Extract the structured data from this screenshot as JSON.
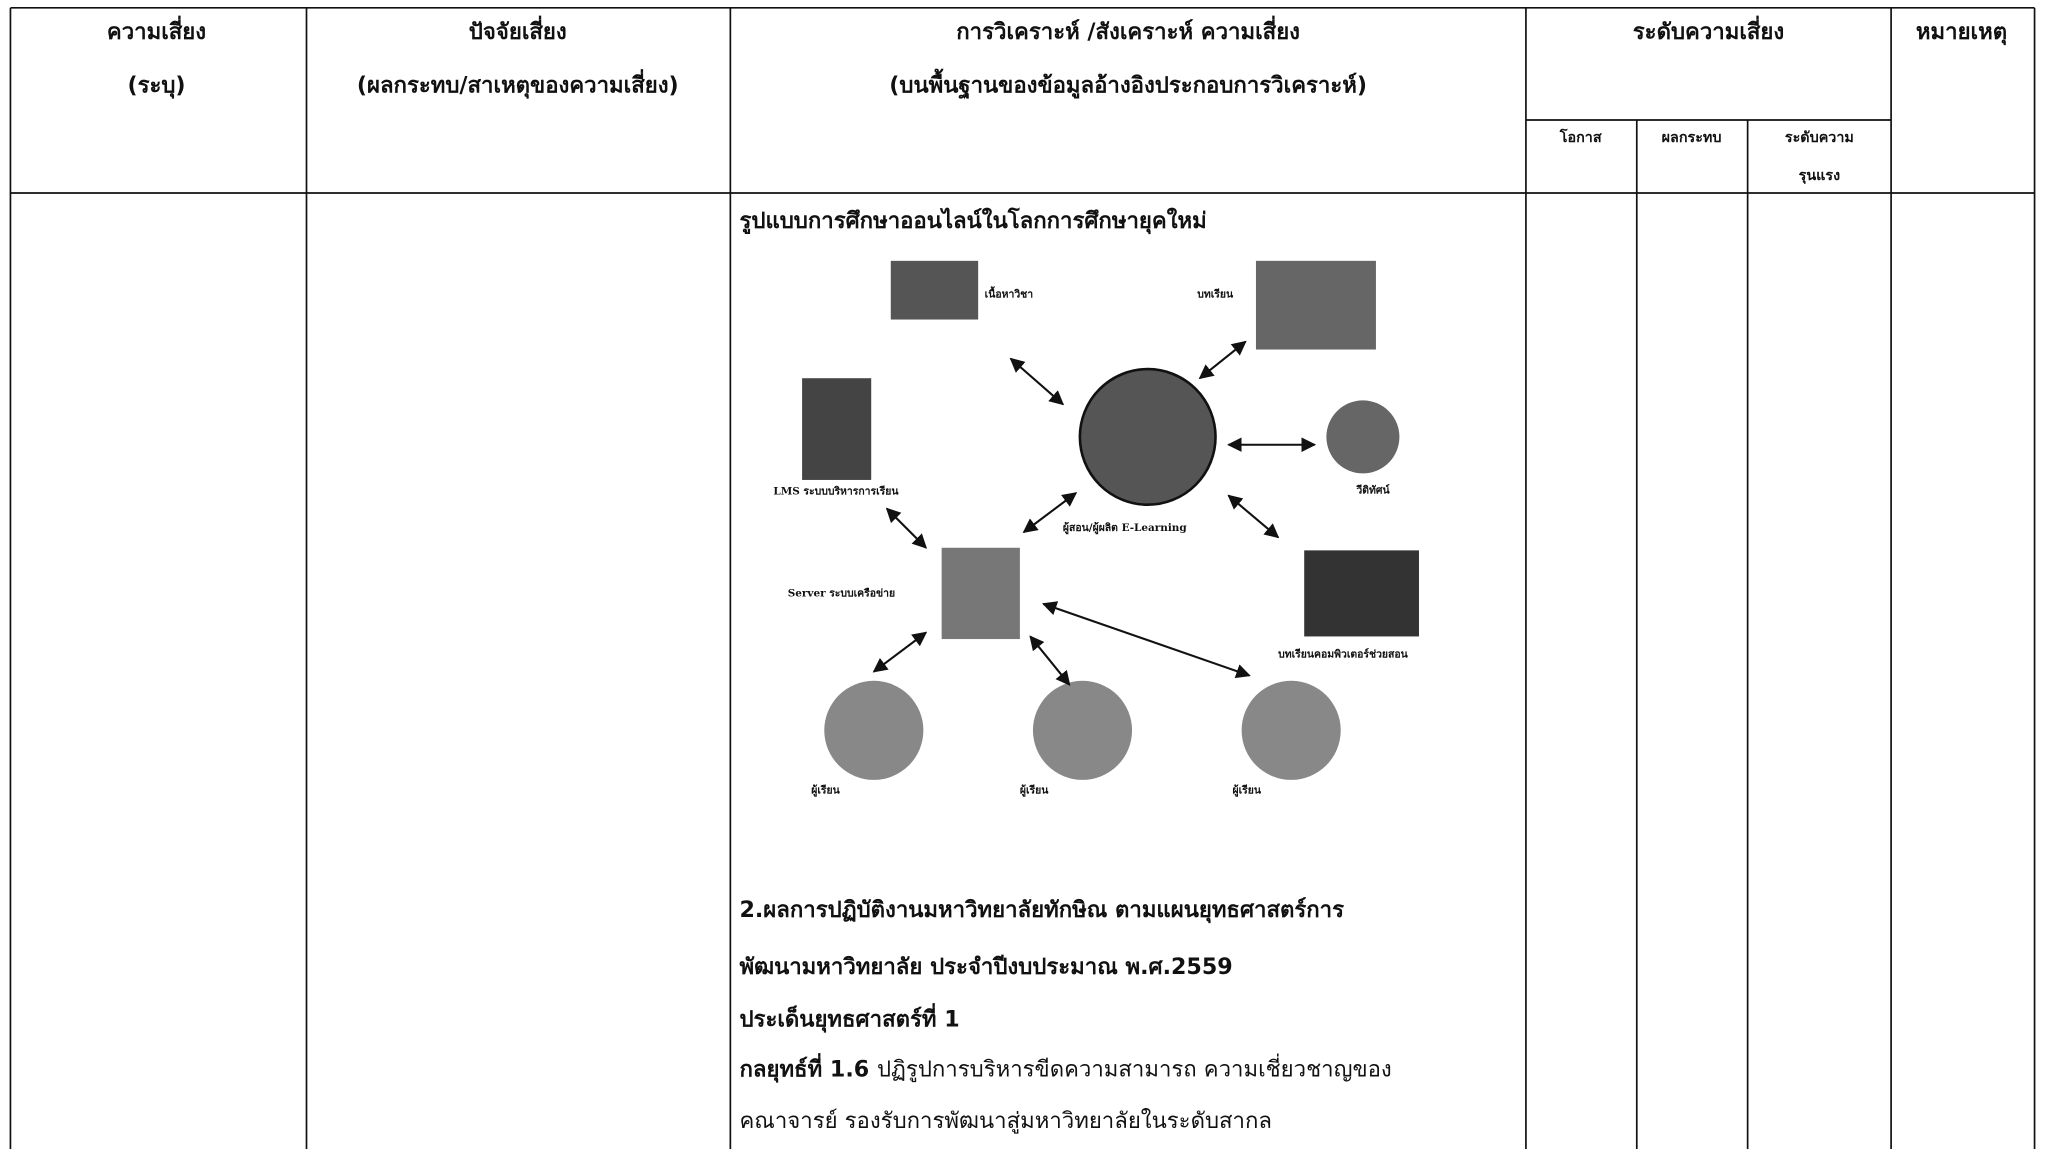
{
  "header": {
    "risk": [
      "ความเสี่ยง",
      "(ระบุ)"
    ],
    "factor": [
      "ปัจจัยเสี่ยง",
      "(ผลกระทบ/สาเหตุของความเสี่ยง)"
    ],
    "analysis": [
      "การวิเคราะห์ /สังเคราะห์ ความเสี่ยง",
      "(บนพื้นฐานของข้อมูลอ้างอิงประกอบการวิเคราะห์)"
    ],
    "level": "ระดับความเสี่ยง",
    "level_sub": {
      "chance": "โอกาส",
      "impact": "ผลกระทบ",
      "severity": [
        "ระดับความ",
        "รุนแรง"
      ]
    },
    "remark": "หมายเหตุ"
  },
  "diagram": {
    "title": "รูปแบบการศึกษาออนไลน์ในโลกการศึกษายุคใหม่",
    "nodes": {
      "content": "เนื้อหาวิชา",
      "lesson": "บทเรียน",
      "lms": "LMS ระบบบริหารการเรียน",
      "center": "ผู้สอน/ผู้ผลิต E-Learning",
      "video": "วีดิทัศน์",
      "server": "Server ระบบเครือข่าย",
      "cai": "บทเรียนคอมพิวเตอร์ช่วยสอน",
      "learners": [
        "ผู้เรียน",
        "ผู้เรียน",
        "ผู้เรียน"
      ]
    }
  },
  "body": {
    "lines": [
      "2.ผลการปฏิบัติงานมหาวิทยาลัยทักษิณ ตามแผนยุทธศาสตร์การ",
      "พัฒนามหาวิทยาลัย ประจำปีงบประมาณ พ.ศ.2559",
      "ประเด็นยุทธศาสตร์ที่ 1"
    ],
    "strategy_label": "กลยุทธ์ที่ 1.6",
    "strategy_text": [
      "ปฏิรูปการบริหารขีดความสามารถ ความเชี่ยวชาญของ",
      "คณาจารย์ รองรับการพัฒนาสู่มหาวิทยาลัยในระดับสากล"
    ]
  }
}
